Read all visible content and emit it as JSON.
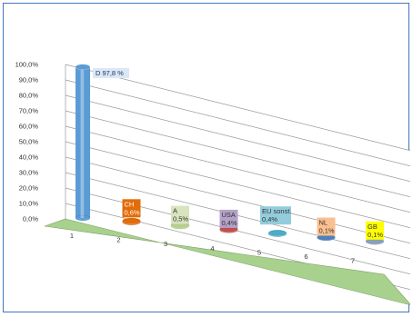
{
  "chart_data": {
    "type": "bar",
    "categories": [
      "1",
      "2",
      "3",
      "4",
      "5",
      "6",
      "7"
    ],
    "values": [
      97.8,
      0.6,
      0.5,
      0.4,
      0.4,
      0.1,
      0.1
    ],
    "data_labels": [
      [
        "D 97,8 %"
      ],
      [
        "CH",
        "0,6%"
      ],
      [
        "A",
        "0,5%"
      ],
      [
        "USA",
        "0,4%"
      ],
      [
        "EU sonst.",
        "0,4%"
      ],
      [
        "NL",
        "0,1%"
      ],
      [
        "GB",
        "0,1%"
      ]
    ],
    "colors": [
      "#5b9bd5",
      "#e36c0a",
      "#b5cf8c",
      "#c0504d",
      "#4bacc6",
      "#4f81bd",
      "#8aa0b8"
    ],
    "label_colors": [
      "#dbe7f6",
      "#e36c0a",
      "#d7e4bd",
      "#b3a2c7",
      "#93cddd",
      "#fac090",
      "#ffff00"
    ],
    "y_ticks": [
      "0,0%",
      "10,0%",
      "20,0%",
      "30,0%",
      "40,0%",
      "50,0%",
      "60,0%",
      "70,0%",
      "80,0%",
      "90,0%",
      "100,0%"
    ],
    "ylim": [
      0,
      100
    ],
    "grid": true,
    "floor_color": "#a9d18e",
    "title": "",
    "xlabel": "",
    "ylabel": ""
  }
}
